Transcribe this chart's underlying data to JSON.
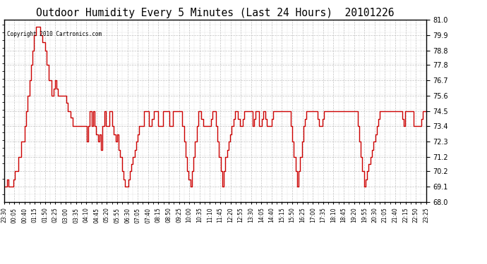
{
  "title": "Outdoor Humidity Every 5 Minutes (Last 24 Hours)  20101226",
  "copyright": "Copyright 2010 Cartronics.com",
  "ylim": [
    68.0,
    81.0
  ],
  "yticks": [
    68.0,
    69.1,
    70.2,
    71.2,
    72.3,
    73.4,
    74.5,
    75.6,
    76.7,
    77.8,
    78.8,
    79.9,
    81.0
  ],
  "line_color": "#cc0000",
  "bg_color": "#ffffff",
  "grid_color": "#bbbbbb",
  "x_labels": [
    "23:30",
    "00:05",
    "00:40",
    "01:15",
    "01:50",
    "02:25",
    "03:00",
    "03:35",
    "04:10",
    "04:45",
    "05:20",
    "05:55",
    "06:30",
    "07:05",
    "07:40",
    "08:15",
    "08:50",
    "09:25",
    "10:00",
    "10:35",
    "11:10",
    "11:45",
    "12:20",
    "12:55",
    "13:30",
    "14:05",
    "14:40",
    "15:15",
    "15:50",
    "16:25",
    "17:00",
    "17:35",
    "18:10",
    "18:45",
    "19:20",
    "19:55",
    "20:30",
    "21:05",
    "21:40",
    "22:15",
    "22:50",
    "23:25"
  ],
  "values": [
    69.1,
    69.1,
    69.6,
    69.1,
    69.1,
    69.1,
    69.6,
    70.2,
    70.2,
    71.2,
    71.2,
    72.3,
    72.3,
    73.4,
    74.5,
    75.6,
    76.7,
    77.8,
    78.8,
    79.9,
    80.5,
    80.5,
    80.5,
    79.9,
    79.4,
    79.4,
    78.8,
    77.8,
    76.7,
    76.7,
    75.6,
    76.1,
    76.7,
    76.1,
    75.6,
    75.6,
    75.6,
    75.6,
    75.6,
    75.1,
    74.5,
    74.5,
    74.0,
    73.4,
    73.4,
    73.4,
    73.4,
    73.4,
    73.4,
    73.4,
    73.4,
    73.4,
    72.3,
    73.4,
    74.5,
    73.4,
    74.5,
    73.4,
    72.8,
    72.3,
    72.8,
    71.7,
    73.4,
    74.5,
    73.4,
    73.4,
    74.5,
    74.5,
    73.4,
    72.8,
    72.3,
    72.8,
    71.7,
    71.2,
    70.2,
    69.6,
    69.1,
    69.1,
    69.6,
    70.2,
    70.7,
    71.2,
    71.7,
    72.3,
    72.8,
    73.4,
    73.4,
    73.4,
    74.5,
    74.5,
    74.5,
    73.4,
    73.4,
    73.9,
    74.5,
    74.5,
    74.5,
    73.4,
    73.4,
    73.4,
    74.5,
    74.5,
    74.5,
    74.5,
    73.4,
    73.4,
    74.5,
    74.5,
    74.5,
    74.5,
    74.5,
    74.5,
    73.4,
    72.3,
    71.2,
    70.2,
    69.6,
    69.1,
    70.2,
    71.2,
    72.3,
    73.4,
    74.5,
    74.5,
    73.9,
    73.4,
    73.4,
    73.4,
    73.4,
    73.4,
    73.9,
    74.5,
    74.5,
    73.4,
    72.3,
    71.2,
    70.2,
    69.1,
    70.2,
    71.2,
    71.7,
    72.3,
    72.8,
    73.4,
    73.9,
    74.5,
    74.5,
    73.9,
    73.4,
    73.4,
    73.9,
    74.5,
    74.5,
    74.5,
    74.5,
    74.5,
    73.4,
    73.9,
    74.5,
    74.5,
    73.4,
    73.4,
    73.9,
    74.5,
    73.9,
    73.4,
    73.4,
    73.4,
    73.9,
    74.5,
    74.5,
    74.5,
    74.5,
    74.5,
    74.5,
    74.5,
    74.5,
    74.5,
    74.5,
    74.5,
    73.4,
    72.3,
    71.2,
    70.2,
    69.1,
    70.2,
    71.2,
    72.3,
    73.4,
    73.9,
    74.5,
    74.5,
    74.5,
    74.5,
    74.5,
    74.5,
    74.5,
    73.9,
    73.4,
    73.4,
    73.9,
    74.5,
    74.5,
    74.5,
    74.5,
    74.5,
    74.5,
    74.5,
    74.5,
    74.5,
    74.5,
    74.5,
    74.5,
    74.5,
    74.5,
    74.5,
    74.5,
    74.5,
    74.5,
    74.5,
    74.5,
    74.5,
    73.4,
    72.3,
    71.2,
    70.2,
    69.1,
    69.6,
    70.2,
    70.7,
    71.2,
    71.7,
    72.3,
    72.8,
    73.4,
    73.9,
    74.5,
    74.5,
    74.5,
    74.5,
    74.5,
    74.5,
    74.5,
    74.5,
    74.5,
    74.5,
    74.5,
    74.5,
    74.5,
    74.5,
    73.9,
    73.4,
    74.5,
    74.5,
    74.5,
    74.5,
    74.5,
    73.4,
    73.4,
    73.4,
    73.4,
    73.4,
    73.9,
    74.5,
    74.5,
    74.5
  ]
}
